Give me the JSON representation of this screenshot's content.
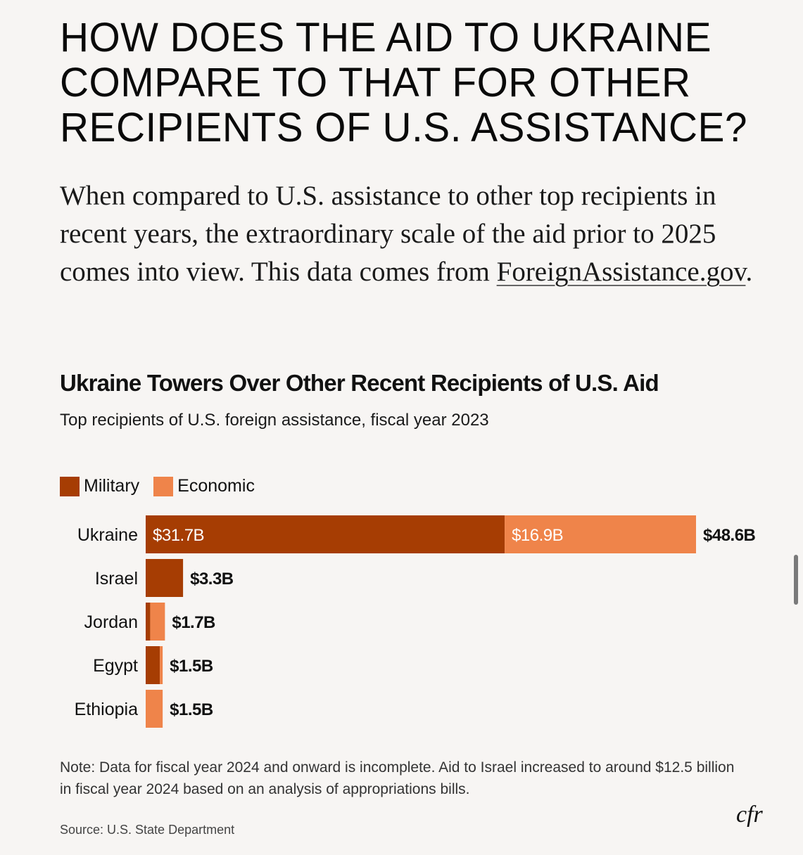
{
  "headline": "HOW DOES THE AID TO UKRAINE COMPARE TO THAT FOR OTHER RECIPIENTS OF U.S. ASSISTANCE?",
  "intro": {
    "text": "When compared to U.S. assistance to other top recipients in recent years, the extraordinary scale of the aid prior to 2025 comes into view. This data comes from ",
    "link_label": "ForeignAssistance.gov",
    "trailing": "."
  },
  "note": "Note: Data for fiscal year 2024 and onward is incomplete. Aid to Israel increased to around $12.5 billion in fiscal year 2024 based on an analysis of appropriations bills.",
  "source": "Source: U.S. State Department",
  "logo": "cfr",
  "colors": {
    "military": "#a63d03",
    "economic": "#ef844a",
    "background": "#f7f5f3"
  },
  "chart_data": {
    "type": "bar",
    "orientation": "horizontal",
    "stacked": true,
    "title": "Ukraine Towers Over Other Recent Recipients of U.S. Aid",
    "subtitle": "Top recipients of U.S. foreign assistance, fiscal year 2023",
    "legend": [
      "Military",
      "Economic"
    ],
    "legend_position": "top-left",
    "categories": [
      "Ukraine",
      "Israel",
      "Jordan",
      "Egypt",
      "Ethiopia"
    ],
    "series": [
      {
        "name": "Military",
        "values": [
          31.7,
          3.3,
          0.4,
          1.25,
          0.0
        ]
      },
      {
        "name": "Economic",
        "values": [
          16.9,
          0.0,
          1.3,
          0.25,
          1.5
        ]
      }
    ],
    "totals": [
      48.6,
      3.3,
      1.7,
      1.5,
      1.5
    ],
    "total_labels": [
      "$48.6B",
      "$3.3B",
      "$1.7B",
      "$1.5B",
      "$1.5B"
    ],
    "inner_labels": {
      "Ukraine": {
        "Military": "$31.7B",
        "Economic": "$16.9B"
      }
    },
    "unit": "billion USD",
    "xlim": [
      0,
      48.6
    ],
    "grid": false
  }
}
